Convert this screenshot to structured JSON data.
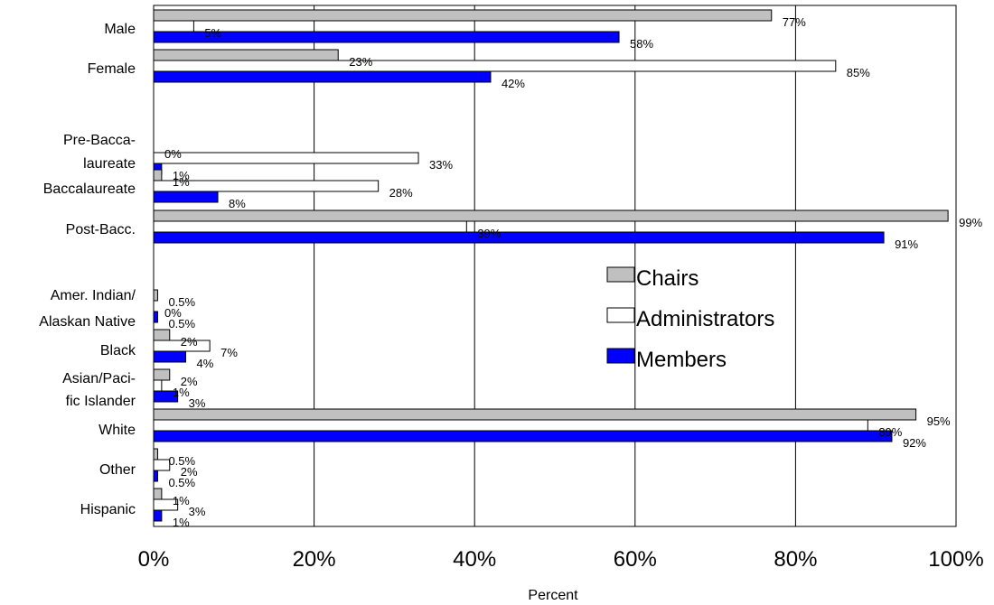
{
  "chart_data": {
    "type": "bar",
    "orientation": "horizontal",
    "xlabel": "Percent",
    "xlim": [
      0,
      100
    ],
    "x_ticks": [
      "0%",
      "20%",
      "40%",
      "60%",
      "80%",
      "100%"
    ],
    "grid": "vertical gridlines at each tick",
    "legend_position": "right",
    "colors": {
      "Chairs": "#c0c0c0",
      "Administrators": "#ffffff",
      "Members": "#0000ff"
    },
    "series_names": [
      "Chairs",
      "Administrators",
      "Members"
    ],
    "categories": [
      {
        "label": [
          "Male"
        ],
        "values": {
          "Chairs": 77,
          "Administrators": 5,
          "Members": 58
        },
        "labels": {
          "Chairs": "77%",
          "Administrators": "5%",
          "Members": "58%"
        }
      },
      {
        "label": [
          "Female"
        ],
        "values": {
          "Chairs": 23,
          "Administrators": 85,
          "Members": 42
        },
        "labels": {
          "Chairs": "23%",
          "Administrators": "85%",
          "Members": "42%"
        }
      },
      {
        "label": [
          "Pre-Bacca-",
          "laureate"
        ],
        "values": {
          "Chairs": 0,
          "Administrators": 33,
          "Members": 1
        },
        "labels": {
          "Chairs": "0%",
          "Administrators": "33%",
          "Members": "1%"
        }
      },
      {
        "label": [
          "Baccalaureate"
        ],
        "values": {
          "Chairs": 1,
          "Administrators": 28,
          "Members": 8
        },
        "labels": {
          "Chairs": "1%",
          "Administrators": "28%",
          "Members": "8%"
        }
      },
      {
        "label": [
          "Post-Bacc."
        ],
        "values": {
          "Chairs": 99,
          "Administrators": 39,
          "Members": 91
        },
        "labels": {
          "Chairs": "99%",
          "Administrators": "39%",
          "Members": "91%"
        }
      },
      {
        "label": [
          "Amer. Indian/",
          "Alaskan Native"
        ],
        "values": {
          "Chairs": 0.5,
          "Administrators": 0,
          "Members": 0.5
        },
        "labels": {
          "Chairs": "0.5%",
          "Administrators": "0%",
          "Members": "0.5%"
        }
      },
      {
        "label": [
          "Black"
        ],
        "values": {
          "Chairs": 2,
          "Administrators": 7,
          "Members": 4
        },
        "labels": {
          "Chairs": "2%",
          "Administrators": "7%",
          "Members": "4%"
        }
      },
      {
        "label": [
          "Asian/Paci-",
          "fic Islander"
        ],
        "values": {
          "Chairs": 2,
          "Administrators": 1,
          "Members": 3
        },
        "labels": {
          "Chairs": "2%",
          "Administrators": "1%",
          "Members": "3%"
        }
      },
      {
        "label": [
          "White"
        ],
        "values": {
          "Chairs": 95,
          "Administrators": 89,
          "Members": 92
        },
        "labels": {
          "Chairs": "95%",
          "Administrators": "89%",
          "Members": "92%"
        }
      },
      {
        "label": [
          "Other"
        ],
        "values": {
          "Chairs": 0.5,
          "Administrators": 2,
          "Members": 0.5
        },
        "labels": {
          "Chairs": "0.5%",
          "Administrators": "2%",
          "Members": "0.5%"
        }
      },
      {
        "label": [
          "Hispanic"
        ],
        "values": {
          "Chairs": 1,
          "Administrators": 3,
          "Members": 1
        },
        "labels": {
          "Chairs": "1%",
          "Administrators": "3%",
          "Members": "1%"
        }
      }
    ]
  }
}
